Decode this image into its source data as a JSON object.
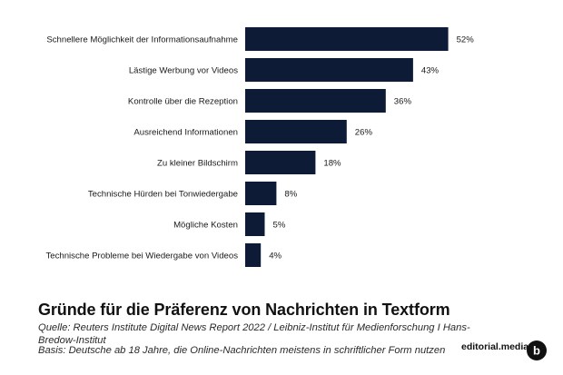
{
  "chart_data": {
    "type": "bar",
    "orientation": "horizontal",
    "categories": [
      "Schnellere Möglichkeit der Informationsaufnahme",
      "Lästige Werbung vor Videos",
      "Kontrolle über die Rezeption",
      "Ausreichend Informationen",
      "Zu kleiner Bildschirm",
      "Technische Hürden bei Tonwiedergabe",
      "Mögliche Kosten",
      "Technische Probleme bei Wiedergabe von Videos"
    ],
    "values": [
      52,
      43,
      36,
      26,
      18,
      8,
      5,
      4
    ],
    "value_labels": [
      "52%",
      "43%",
      "36%",
      "26%",
      "18%",
      "8%",
      "5%",
      "4%"
    ],
    "unit": "%",
    "bar_color": "#0d1b36",
    "xlim": [
      0,
      52
    ],
    "grid": false,
    "title": "Gründe für die Präferenz von Nachrichten in Textform",
    "source": "Quelle: Reuters Institute Digital News Report 2022 / Leibniz-Institut für Medienforschung I Hans-Bredow-Institut",
    "basis": "Basis: Deutsche ab 18 Jahre, die Online-Nachrichten meistens in schriftlicher Form nutzen"
  },
  "brand": {
    "name": "editorial.media",
    "logo_letter": "b",
    "logo_color": "#111111"
  }
}
